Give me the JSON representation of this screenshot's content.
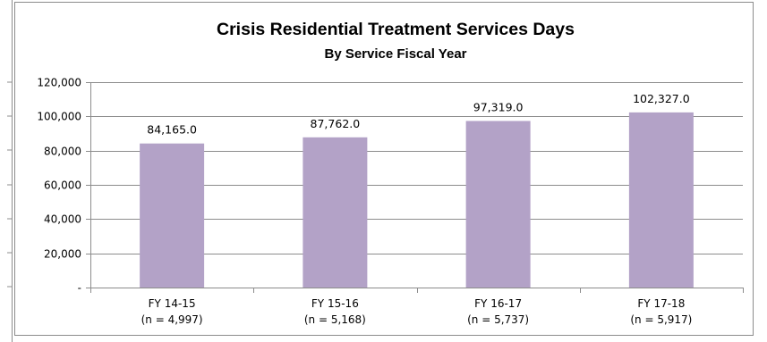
{
  "chart_data": {
    "type": "bar",
    "title": "Crisis Residential Treatment Services Days",
    "subtitle": "By Service Fiscal Year",
    "categories": [
      "FY 14-15",
      "FY 15-16",
      "FY 16-17",
      "FY 17-18"
    ],
    "category_notes": [
      "(n = 4,997)",
      "(n = 5,168)",
      "(n = 5,737)",
      "(n = 5,917)"
    ],
    "values": [
      84165,
      87762,
      97319,
      102327
    ],
    "value_labels": [
      "84,165.0",
      "87,762.0",
      "97,319.0",
      "102,327.0"
    ],
    "ylim": [
      0,
      120000
    ],
    "yticks": [
      0,
      20000,
      40000,
      60000,
      80000,
      100000,
      120000
    ],
    "ytick_labels": [
      "-",
      "20,000",
      "40,000",
      "60,000",
      "80,000",
      "100,000",
      "120,000"
    ],
    "grid": true,
    "legend": "none",
    "bar_color": "#b3a2c7",
    "gridline_color": "#8c8c8c"
  }
}
